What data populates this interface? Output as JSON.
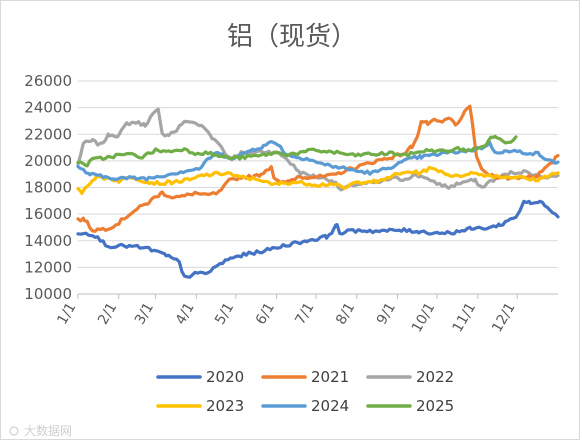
{
  "chart_data": {
    "type": "line",
    "title": "铝（现货）",
    "ylim": [
      10000,
      26000
    ],
    "yticks": [
      10000,
      12000,
      14000,
      16000,
      18000,
      20000,
      22000,
      24000,
      26000
    ],
    "ytick_labels": [
      "10000",
      "12000",
      "14000",
      "16000",
      "18000",
      "20000",
      "22000",
      "24000",
      "26000"
    ],
    "x_unit": "day of year",
    "xlim": [
      1,
      366
    ],
    "xticks": [
      1,
      32,
      60,
      91,
      121,
      152,
      182,
      213,
      244,
      274,
      305,
      335
    ],
    "xtick_labels": [
      "1/1",
      "2/1",
      "3/1",
      "4/1",
      "5/1",
      "6/1",
      "7/1",
      "8/1",
      "9/1",
      "10/1",
      "11/1",
      "12/1"
    ],
    "grid": "horizontal",
    "legend": "bottom",
    "series": [
      {
        "name": "2020",
        "color": "#4472c4",
        "points": [
          [
            1,
            14600
          ],
          [
            12,
            14500
          ],
          [
            24,
            13600
          ],
          [
            40,
            13600
          ],
          [
            55,
            13400
          ],
          [
            68,
            12900
          ],
          [
            78,
            12400
          ],
          [
            80,
            11600
          ],
          [
            84,
            11300
          ],
          [
            90,
            11500
          ],
          [
            100,
            11600
          ],
          [
            105,
            12000
          ],
          [
            115,
            12600
          ],
          [
            125,
            12900
          ],
          [
            135,
            13100
          ],
          [
            145,
            13300
          ],
          [
            160,
            13700
          ],
          [
            175,
            14000
          ],
          [
            190,
            14300
          ],
          [
            195,
            14800
          ],
          [
            198,
            15200
          ],
          [
            200,
            14600
          ],
          [
            215,
            14800
          ],
          [
            230,
            14700
          ],
          [
            245,
            14800
          ],
          [
            260,
            14700
          ],
          [
            270,
            14600
          ],
          [
            285,
            14600
          ],
          [
            300,
            14900
          ],
          [
            315,
            15000
          ],
          [
            322,
            15200
          ],
          [
            330,
            15600
          ],
          [
            335,
            15900
          ],
          [
            338,
            16500
          ],
          [
            340,
            17000
          ],
          [
            345,
            16800
          ],
          [
            352,
            16900
          ],
          [
            358,
            16600
          ],
          [
            362,
            16200
          ],
          [
            366,
            15800
          ]
        ]
      },
      {
        "name": "2021",
        "color": "#ed7d31",
        "points": [
          [
            1,
            15600
          ],
          [
            6,
            15600
          ],
          [
            12,
            14800
          ],
          [
            22,
            14900
          ],
          [
            30,
            15200
          ],
          [
            40,
            16000
          ],
          [
            48,
            16500
          ],
          [
            55,
            16900
          ],
          [
            60,
            17300
          ],
          [
            65,
            17600
          ],
          [
            72,
            17300
          ],
          [
            80,
            17300
          ],
          [
            90,
            17600
          ],
          [
            98,
            17400
          ],
          [
            108,
            17600
          ],
          [
            116,
            18500
          ],
          [
            125,
            18800
          ],
          [
            135,
            18800
          ],
          [
            140,
            19000
          ],
          [
            148,
            19600
          ],
          [
            150,
            18800
          ],
          [
            155,
            18300
          ],
          [
            160,
            18400
          ],
          [
            168,
            18800
          ],
          [
            175,
            18800
          ],
          [
            185,
            18800
          ],
          [
            195,
            18900
          ],
          [
            205,
            19300
          ],
          [
            215,
            19600
          ],
          [
            228,
            20000
          ],
          [
            240,
            20300
          ],
          [
            250,
            20600
          ],
          [
            255,
            21100
          ],
          [
            260,
            22100
          ],
          [
            262,
            23000
          ],
          [
            267,
            22800
          ],
          [
            272,
            23000
          ],
          [
            278,
            22900
          ],
          [
            283,
            23200
          ],
          [
            288,
            22800
          ],
          [
            292,
            23000
          ],
          [
            295,
            23600
          ],
          [
            299,
            24200
          ],
          [
            302,
            22000
          ],
          [
            304,
            20200
          ],
          [
            310,
            19100
          ],
          [
            320,
            18800
          ],
          [
            330,
            18700
          ],
          [
            340,
            18800
          ],
          [
            350,
            18900
          ],
          [
            360,
            19700
          ],
          [
            366,
            20400
          ]
        ]
      },
      {
        "name": "2022",
        "color": "#a5a5a5",
        "points": [
          [
            1,
            19700
          ],
          [
            5,
            21300
          ],
          [
            12,
            21500
          ],
          [
            18,
            21200
          ],
          [
            25,
            22000
          ],
          [
            32,
            21900
          ],
          [
            38,
            22800
          ],
          [
            45,
            22900
          ],
          [
            52,
            22700
          ],
          [
            58,
            23500
          ],
          [
            62,
            23800
          ],
          [
            65,
            22000
          ],
          [
            70,
            22000
          ],
          [
            76,
            22300
          ],
          [
            80,
            22800
          ],
          [
            86,
            23000
          ],
          [
            93,
            22700
          ],
          [
            98,
            22400
          ],
          [
            103,
            21700
          ],
          [
            108,
            21400
          ],
          [
            113,
            20500
          ],
          [
            118,
            20200
          ],
          [
            125,
            20600
          ],
          [
            130,
            20600
          ],
          [
            138,
            20700
          ],
          [
            146,
            20700
          ],
          [
            152,
            20600
          ],
          [
            158,
            20300
          ],
          [
            163,
            19800
          ],
          [
            170,
            19100
          ],
          [
            178,
            18900
          ],
          [
            188,
            18700
          ],
          [
            195,
            18500
          ],
          [
            201,
            17800
          ],
          [
            210,
            18200
          ],
          [
            220,
            18300
          ],
          [
            230,
            18400
          ],
          [
            240,
            18700
          ],
          [
            248,
            18600
          ],
          [
            256,
            18900
          ],
          [
            265,
            18800
          ],
          [
            270,
            18400
          ],
          [
            278,
            18200
          ],
          [
            283,
            18000
          ],
          [
            290,
            18300
          ],
          [
            298,
            18500
          ],
          [
            303,
            18500
          ],
          [
            308,
            18000
          ],
          [
            315,
            18500
          ],
          [
            322,
            18800
          ],
          [
            330,
            19100
          ],
          [
            340,
            19200
          ],
          [
            350,
            18900
          ],
          [
            358,
            18800
          ],
          [
            366,
            18900
          ]
        ]
      },
      {
        "name": "2023",
        "color": "#ffc000",
        "points": [
          [
            1,
            18000
          ],
          [
            4,
            17600
          ],
          [
            8,
            18200
          ],
          [
            15,
            18800
          ],
          [
            25,
            18700
          ],
          [
            32,
            18500
          ],
          [
            42,
            18800
          ],
          [
            55,
            18400
          ],
          [
            65,
            18300
          ],
          [
            72,
            18400
          ],
          [
            80,
            18500
          ],
          [
            88,
            18600
          ],
          [
            95,
            18900
          ],
          [
            105,
            19000
          ],
          [
            115,
            19100
          ],
          [
            122,
            18800
          ],
          [
            130,
            18700
          ],
          [
            140,
            18600
          ],
          [
            148,
            18200
          ],
          [
            155,
            18300
          ],
          [
            165,
            18400
          ],
          [
            175,
            18300
          ],
          [
            185,
            18200
          ],
          [
            195,
            18300
          ],
          [
            203,
            17900
          ],
          [
            210,
            18300
          ],
          [
            220,
            18500
          ],
          [
            230,
            18400
          ],
          [
            240,
            18900
          ],
          [
            246,
            19000
          ],
          [
            252,
            19200
          ],
          [
            260,
            19100
          ],
          [
            268,
            19400
          ],
          [
            275,
            19300
          ],
          [
            282,
            19000
          ],
          [
            290,
            18800
          ],
          [
            298,
            19100
          ],
          [
            306,
            19000
          ],
          [
            315,
            18900
          ],
          [
            325,
            18800
          ],
          [
            335,
            18800
          ],
          [
            345,
            18600
          ],
          [
            352,
            18600
          ],
          [
            360,
            19000
          ],
          [
            366,
            19100
          ]
        ]
      },
      {
        "name": "2024",
        "color": "#5b9bd5",
        "points": [
          [
            1,
            19500
          ],
          [
            10,
            19000
          ],
          [
            20,
            18800
          ],
          [
            32,
            18700
          ],
          [
            45,
            18700
          ],
          [
            55,
            18700
          ],
          [
            65,
            18900
          ],
          [
            75,
            19100
          ],
          [
            85,
            19300
          ],
          [
            93,
            19400
          ],
          [
            100,
            20100
          ],
          [
            105,
            20600
          ],
          [
            112,
            20400
          ],
          [
            120,
            20200
          ],
          [
            128,
            20600
          ],
          [
            135,
            20900
          ],
          [
            142,
            21100
          ],
          [
            148,
            21400
          ],
          [
            153,
            21300
          ],
          [
            158,
            20600
          ],
          [
            165,
            20300
          ],
          [
            175,
            20200
          ],
          [
            185,
            19800
          ],
          [
            195,
            19600
          ],
          [
            205,
            19400
          ],
          [
            215,
            19200
          ],
          [
            225,
            19100
          ],
          [
            235,
            19400
          ],
          [
            245,
            19800
          ],
          [
            255,
            20200
          ],
          [
            262,
            20300
          ],
          [
            270,
            20400
          ],
          [
            280,
            20600
          ],
          [
            290,
            20700
          ],
          [
            300,
            20800
          ],
          [
            308,
            21000
          ],
          [
            314,
            21300
          ],
          [
            318,
            20700
          ],
          [
            325,
            20700
          ],
          [
            335,
            20700
          ],
          [
            345,
            20600
          ],
          [
            352,
            20500
          ],
          [
            358,
            20000
          ],
          [
            366,
            19900
          ]
        ]
      },
      {
        "name": "2025",
        "color": "#70ad47",
        "points": [
          [
            1,
            19900
          ],
          [
            8,
            19700
          ],
          [
            12,
            20100
          ],
          [
            20,
            20200
          ],
          [
            30,
            20400
          ],
          [
            40,
            20500
          ],
          [
            50,
            20300
          ],
          [
            60,
            20800
          ],
          [
            70,
            20700
          ],
          [
            80,
            20900
          ],
          [
            90,
            20600
          ],
          [
            100,
            20600
          ],
          [
            106,
            20400
          ],
          [
            112,
            20300
          ],
          [
            120,
            20200
          ],
          [
            130,
            20300
          ],
          [
            140,
            20400
          ],
          [
            150,
            20600
          ],
          [
            160,
            20500
          ],
          [
            170,
            20600
          ],
          [
            180,
            20800
          ],
          [
            190,
            20700
          ],
          [
            200,
            20600
          ],
          [
            210,
            20400
          ],
          [
            220,
            20500
          ],
          [
            230,
            20500
          ],
          [
            240,
            20600
          ],
          [
            250,
            20400
          ],
          [
            260,
            20700
          ],
          [
            270,
            20800
          ],
          [
            280,
            20700
          ],
          [
            290,
            20900
          ],
          [
            300,
            20800
          ],
          [
            308,
            21000
          ],
          [
            313,
            21500
          ],
          [
            318,
            21900
          ],
          [
            322,
            21600
          ],
          [
            326,
            21300
          ],
          [
            330,
            21500
          ],
          [
            334,
            21800
          ]
        ]
      }
    ]
  },
  "watermark": "大数据网"
}
